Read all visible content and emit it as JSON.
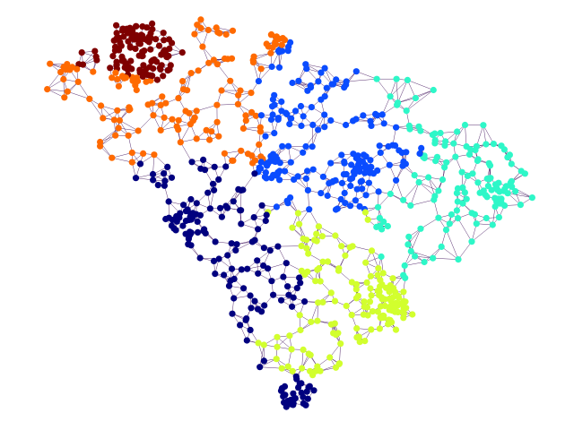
{
  "graph": {
    "kind": "district-partition-graph",
    "districts": [
      {
        "id": 1,
        "color": "#7f0000"
      },
      {
        "id": 2,
        "color": "#ff6a00"
      },
      {
        "id": 3,
        "color": "#0a4cff"
      },
      {
        "id": 4,
        "color": "#2ef7c8"
      },
      {
        "id": 5,
        "color": "#d2ff2e"
      },
      {
        "id": 6,
        "color": "#00007f"
      }
    ],
    "edge_color": "#3b0a57",
    "background": "#ffffff",
    "node_count_approx": 1200
  }
}
